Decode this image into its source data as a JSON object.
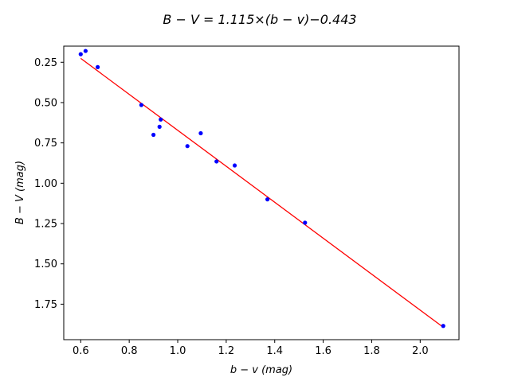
{
  "chart_data": {
    "type": "scatter",
    "title": "B − V = 1.115×(b − v)−0.443",
    "xlabel": "b − v  (mag)",
    "ylabel": "B − V  (mag)",
    "xlim": [
      0.53,
      2.16
    ],
    "ylim": [
      1.97,
      0.15
    ],
    "y_inverted": true,
    "grid": false,
    "xticks": [
      0.6,
      0.8,
      1.0,
      1.2,
      1.4,
      1.6,
      1.8,
      2.0
    ],
    "xtick_labels": [
      "0.6",
      "0.8",
      "1.0",
      "1.2",
      "1.4",
      "1.6",
      "1.8",
      "2.0"
    ],
    "yticks": [
      0.25,
      0.5,
      0.75,
      1.0,
      1.25,
      1.5,
      1.75
    ],
    "ytick_labels": [
      "0.25",
      "0.50",
      "0.75",
      "1.00",
      "1.25",
      "1.50",
      "1.75"
    ],
    "points": {
      "color": "#0000ff",
      "x": [
        0.6,
        0.62,
        0.67,
        0.85,
        0.9,
        0.925,
        0.93,
        1.04,
        1.095,
        1.16,
        1.235,
        1.37,
        1.525,
        2.095
      ],
      "y": [
        0.2,
        0.18,
        0.28,
        0.515,
        0.7,
        0.65,
        0.605,
        0.77,
        0.69,
        0.865,
        0.89,
        1.1,
        1.245,
        1.885
      ]
    },
    "fit_line": {
      "color": "#ff0000",
      "slope": 1.115,
      "intercept": -0.443,
      "x_range": [
        0.6,
        2.095
      ]
    }
  }
}
